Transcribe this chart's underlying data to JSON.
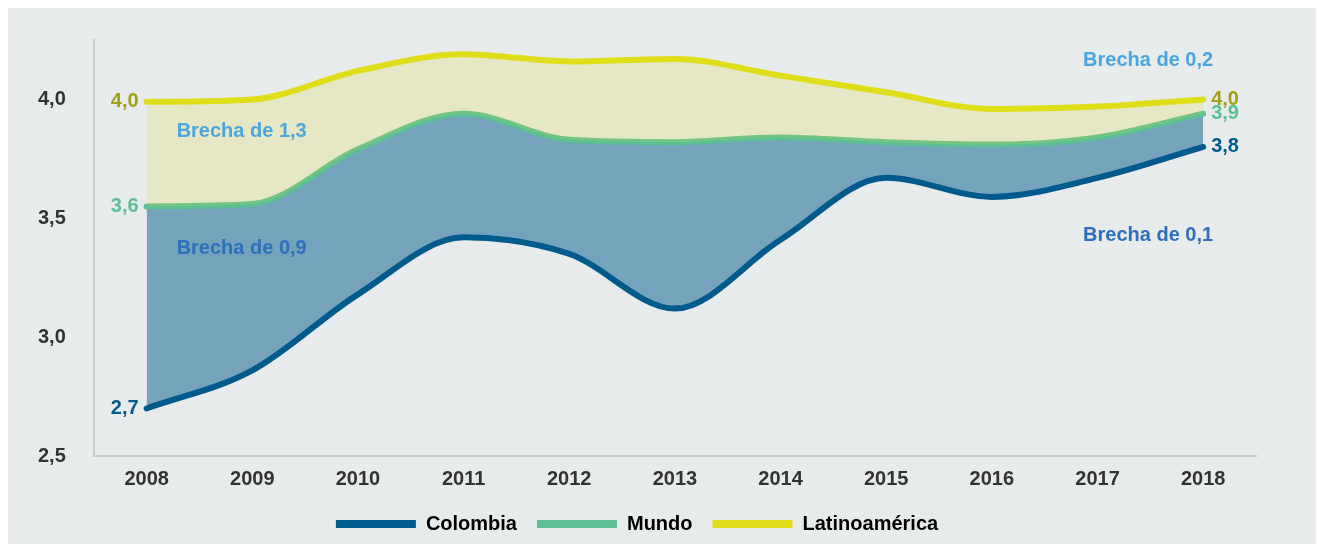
{
  "chart_data": {
    "type": "line",
    "categories": [
      "2008",
      "2009",
      "2010",
      "2011",
      "2012",
      "2013",
      "2014",
      "2015",
      "2016",
      "2017",
      "2018"
    ],
    "series": [
      {
        "name": "Colombia",
        "color": "#005b8c",
        "values": [
          2.7,
          2.86,
          3.18,
          3.42,
          3.35,
          3.12,
          3.41,
          3.67,
          3.59,
          3.67,
          3.8
        ],
        "value_labels": [
          "2,7",
          null,
          null,
          null,
          null,
          null,
          null,
          null,
          null,
          null,
          "3,8"
        ]
      },
      {
        "name": "Mundo",
        "type": "area",
        "color": "#5cbf95",
        "values": [
          3.55,
          3.56,
          3.79,
          3.94,
          3.83,
          3.82,
          3.84,
          3.82,
          3.81,
          3.84,
          3.94
        ],
        "value_labels": [
          "3,6",
          null,
          null,
          null,
          null,
          null,
          null,
          null,
          null,
          null,
          "3,9"
        ]
      },
      {
        "name": "Latinoamérica",
        "type": "area",
        "color": "#e0dd1a",
        "values": [
          3.99,
          4.0,
          4.12,
          4.19,
          4.16,
          4.17,
          4.1,
          4.03,
          3.96,
          3.97,
          4.0
        ],
        "value_labels": [
          "4,0",
          null,
          null,
          null,
          null,
          null,
          null,
          null,
          null,
          null,
          "4,0"
        ]
      }
    ],
    "ylim": [
      2.5,
      4.25
    ],
    "yticks": [
      {
        "value": 2.5,
        "label": "2,5"
      },
      {
        "value": 3.0,
        "label": "3,0"
      },
      {
        "value": 3.5,
        "label": "3,5"
      },
      {
        "value": 4.0,
        "label": "4,0"
      }
    ],
    "grid": false,
    "legend": "bottom",
    "marker": "none",
    "line_style": "solid",
    "annotations": [
      "Brecha de 1,3",
      "Brecha de 0,9",
      "Brecha de 0,2",
      "Brecha de 0,1"
    ]
  }
}
